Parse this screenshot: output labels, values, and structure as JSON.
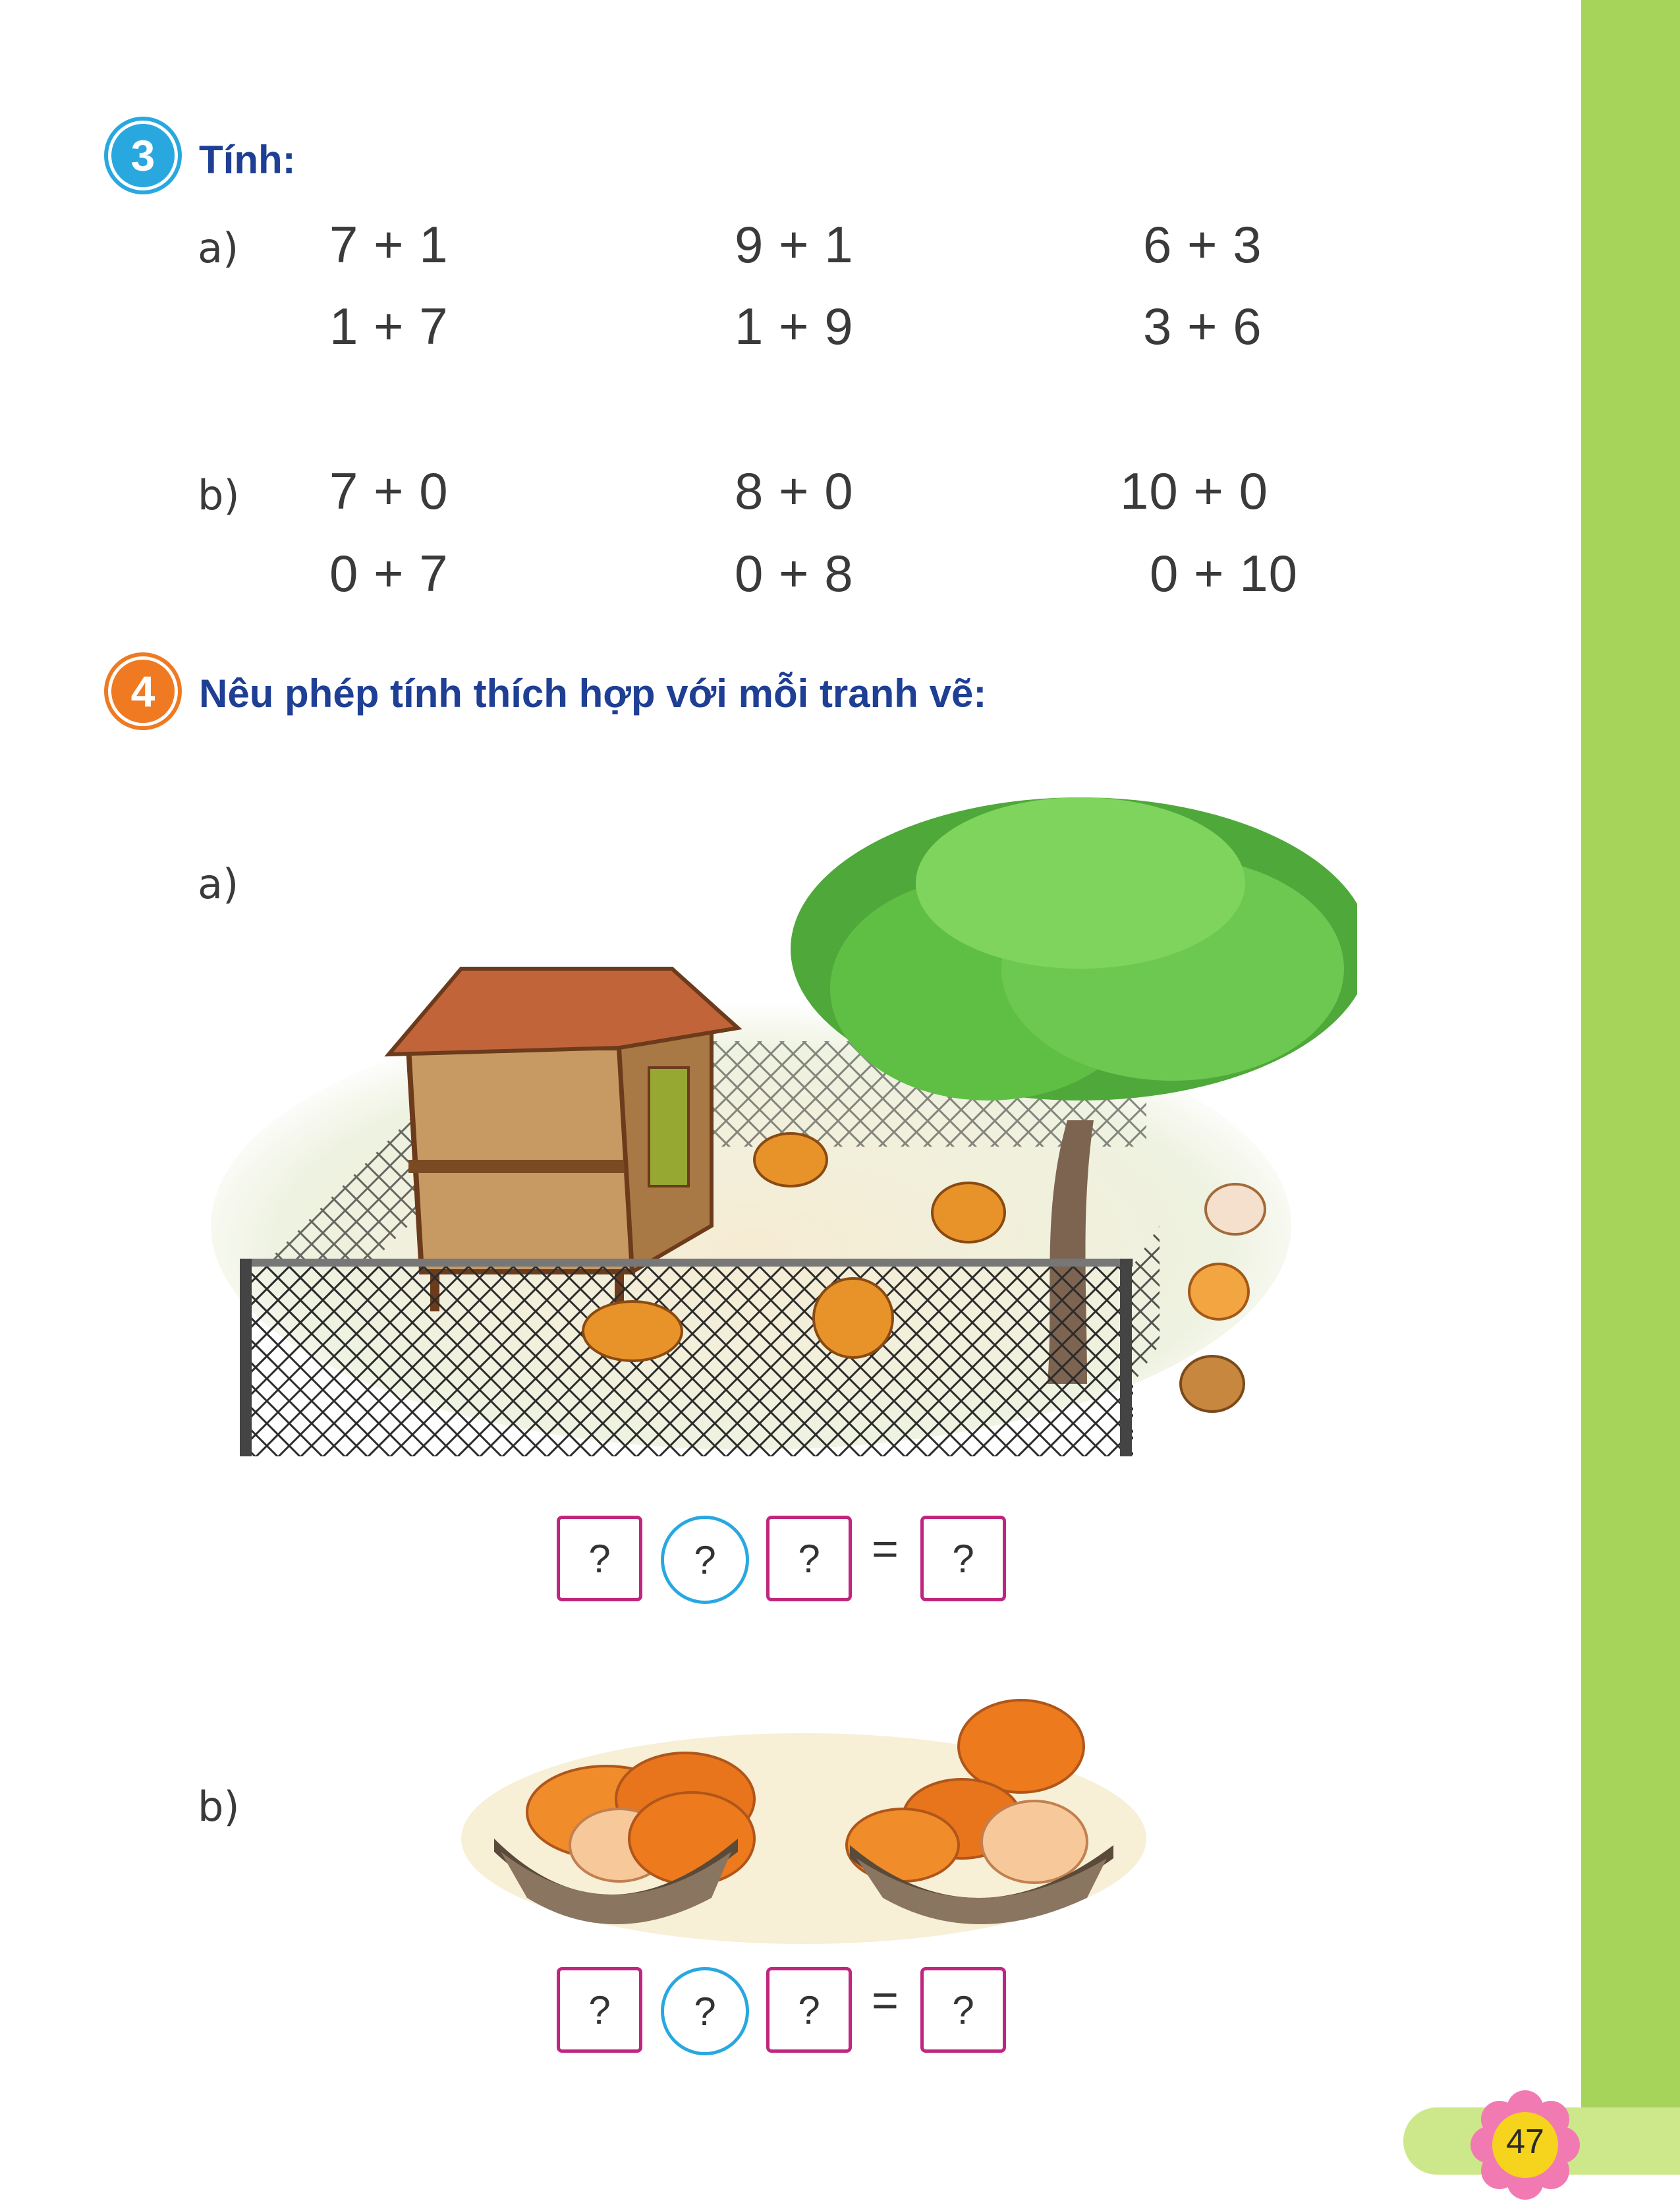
{
  "page_number": "47",
  "exercise3": {
    "number": "3",
    "title": "Tính:",
    "part_a": {
      "label": "a)",
      "rows": [
        [
          "7 + 1",
          "9 + 1",
          "6 + 3"
        ],
        [
          "1 + 7",
          "1 + 9",
          "3 + 6"
        ]
      ]
    },
    "part_b": {
      "label": "b)",
      "rows": [
        [
          "7 + 0",
          "8 + 0",
          "10 + 0"
        ],
        [
          "0 + 7",
          "0 + 8",
          "0 + 10"
        ]
      ]
    }
  },
  "exercise4": {
    "number": "4",
    "title": "Nêu phép tính thích hợp với mỗi tranh vẽ:",
    "part_a": {
      "label": "a)",
      "answer": {
        "operand1": "?",
        "operator": "?",
        "operand2": "?",
        "equals": "=",
        "result": "?"
      }
    },
    "part_b": {
      "label": "b)",
      "answer": {
        "operand1": "?",
        "operator": "?",
        "operand2": "?",
        "equals": "=",
        "result": "?"
      }
    }
  },
  "colors": {
    "sidebar": "#a6d45a",
    "title_blue": "#1f3f95",
    "badge3": "#29a8e0",
    "badge4": "#ef7a22",
    "answer_box_border": "#c0267f",
    "operator_circle_border": "#29a8e0"
  }
}
